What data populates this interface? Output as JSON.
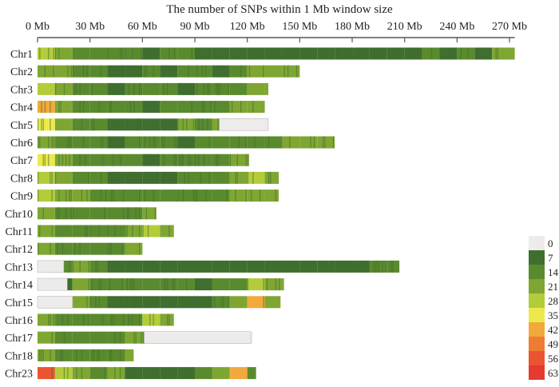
{
  "chart_data": {
    "type": "heatmap",
    "title": "The number of SNPs within 1 Mb window size",
    "x_unit": "Mb",
    "x_ticks": [
      "0 Mb",
      "30 Mb",
      "60 Mb",
      "90 Mb",
      "120 Mb",
      "150 Mb",
      "180 Mb",
      "210 Mb",
      "240 Mb",
      "270 Mb"
    ],
    "x_tick_values": [
      0,
      30,
      60,
      90,
      120,
      150,
      180,
      210,
      240,
      270
    ],
    "bin_size_mb": 10,
    "legend": {
      "placement": "bottom-right",
      "levels": [
        0,
        7,
        14,
        21,
        28,
        35,
        42,
        49,
        56,
        63
      ],
      "labels": [
        "0",
        "7",
        "14",
        "21",
        "28",
        "35",
        "42",
        "49",
        "56",
        "63"
      ],
      "colors": [
        "#eeeceb",
        "#3f6e2f",
        "#5a8a2e",
        "#7fa632",
        "#b3cc3a",
        "#ece94a",
        "#f2a93b",
        "#ee7d33",
        "#ea5530",
        "#e53a2f"
      ]
    },
    "chromosomes": [
      {
        "name": "Chr1",
        "length": 273,
        "gaps": [],
        "density": [
          28,
          18,
          14,
          12,
          14,
          12,
          10,
          12,
          14,
          8,
          8,
          7,
          10,
          8,
          8,
          10,
          7,
          8,
          10,
          8,
          10,
          8,
          12,
          10,
          14,
          10,
          24,
          21
        ]
      },
      {
        "name": "Chr2",
        "length": 150,
        "gaps": [],
        "density": [
          24,
          20,
          14,
          12,
          8,
          10,
          12,
          10,
          14,
          12,
          10,
          16,
          18,
          22,
          21
        ]
      },
      {
        "name": "Chr3",
        "length": 132,
        "gaps": [],
        "density": [
          28,
          18,
          14,
          12,
          10,
          12,
          14,
          12,
          10,
          12,
          14,
          16,
          21,
          20
        ]
      },
      {
        "name": "Chr4",
        "length": 130,
        "gaps": [],
        "density": [
          40,
          21,
          14,
          12,
          14,
          12,
          10,
          12,
          14,
          12,
          16,
          18,
          21
        ]
      },
      {
        "name": "Chr5",
        "length": 132,
        "gaps": [
          [
            104,
            132
          ]
        ],
        "density": [
          36,
          18,
          14,
          12,
          10,
          10,
          8,
          10,
          21,
          14,
          18,
          0,
          0,
          0
        ]
      },
      {
        "name": "Chr6",
        "length": 170,
        "gaps": [],
        "density": [
          21,
          16,
          14,
          12,
          10,
          12,
          14,
          12,
          10,
          12,
          14,
          12,
          14,
          16,
          18,
          21,
          20
        ]
      },
      {
        "name": "Chr7",
        "length": 121,
        "gaps": [],
        "density": [
          38,
          20,
          14,
          12,
          14,
          12,
          10,
          14,
          12,
          14,
          16,
          21,
          20
        ]
      },
      {
        "name": "Chr8",
        "length": 138,
        "gaps": [],
        "density": [
          30,
          24,
          14,
          12,
          8,
          10,
          8,
          10,
          12,
          14,
          16,
          18,
          28,
          21
        ]
      },
      {
        "name": "Chr9",
        "length": 138,
        "gaps": [],
        "density": [
          26,
          20,
          18,
          14,
          12,
          14,
          12,
          14,
          12,
          14,
          16,
          18,
          24,
          21
        ]
      },
      {
        "name": "Chr10",
        "length": 68,
        "gaps": [],
        "density": [
          24,
          14,
          12,
          14,
          12,
          16,
          21
        ]
      },
      {
        "name": "Chr11",
        "length": 78,
        "gaps": [],
        "density": [
          21,
          14,
          12,
          14,
          12,
          18,
          28,
          21
        ]
      },
      {
        "name": "Chr12",
        "length": 60,
        "gaps": [],
        "density": [
          21,
          16,
          12,
          14,
          12,
          18
        ]
      },
      {
        "name": "Chr13",
        "length": 207,
        "gaps": [
          [
            0,
            15
          ]
        ],
        "density": [
          0,
          14,
          24,
          14,
          10,
          8,
          8,
          10,
          8,
          7,
          8,
          10,
          8,
          10,
          8,
          7,
          8,
          10,
          8,
          12,
          14
        ]
      },
      {
        "name": "Chr14",
        "length": 141,
        "gaps": [
          [
            0,
            17
          ]
        ],
        "density": [
          0,
          10,
          18,
          14,
          12,
          14,
          12,
          14,
          12,
          10,
          14,
          16,
          26,
          21,
          20
        ]
      },
      {
        "name": "Chr15",
        "length": 139,
        "gaps": [
          [
            0,
            20
          ]
        ],
        "density": [
          0,
          0,
          18,
          14,
          10,
          8,
          10,
          8,
          10,
          8,
          14,
          18,
          44,
          24
        ]
      },
      {
        "name": "Chr16",
        "length": 78,
        "gaps": [],
        "density": [
          24,
          16,
          14,
          12,
          14,
          12,
          26,
          21
        ]
      },
      {
        "name": "Chr17",
        "length": 123,
        "gaps": [
          [
            61,
            122
          ]
        ],
        "density": [
          21,
          16,
          14,
          12,
          14,
          18,
          12,
          0,
          0,
          0,
          0,
          0,
          0
        ]
      },
      {
        "name": "Chr18",
        "length": 55,
        "gaps": [],
        "density": [
          21,
          16,
          14,
          12,
          14,
          18
        ]
      },
      {
        "name": "Chr23",
        "length": 125,
        "gaps": [],
        "density": [
          56,
          28,
          18,
          14,
          24,
          10,
          8,
          10,
          8,
          14,
          24,
          40,
          16
        ]
      }
    ]
  }
}
